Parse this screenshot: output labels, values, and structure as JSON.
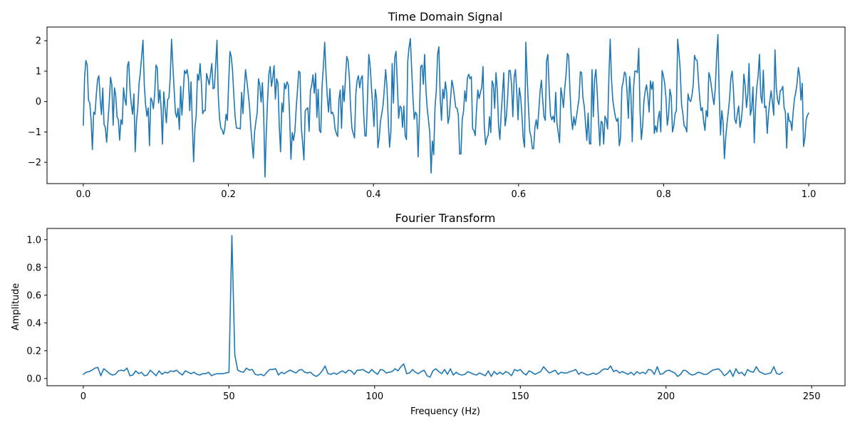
{
  "chart_data": [
    {
      "type": "line",
      "title": "Time Domain Signal",
      "xlabel": "",
      "ylabel": "",
      "xlim": [
        -0.05,
        1.05
      ],
      "ylim": [
        -2.7,
        2.45
      ],
      "xticks": [
        0.0,
        0.2,
        0.4,
        0.6,
        0.8,
        1.0
      ],
      "xtick_labels": [
        "0.0",
        "0.2",
        "0.4",
        "0.6",
        "0.8",
        "1.0"
      ],
      "yticks": [
        -2,
        -1,
        0,
        1,
        2
      ],
      "ytick_labels": [
        "−2",
        "−1",
        "0",
        "1",
        "2"
      ],
      "grid": false,
      "series": [
        {
          "color": "#1f77b4",
          "x_start": 0.0,
          "x_end": 1.0,
          "values": [
            -0.78,
            0.8,
            1.35,
            1.2,
            0.05,
            -0.05,
            -0.6,
            -1.58,
            -0.35,
            -0.42,
            0.2,
            0.72,
            0.85,
            0.1,
            -0.43,
            0.44,
            -0.76,
            -0.85,
            -1.34,
            -0.66,
            -0.02,
            0.8,
            0.55,
            -0.78,
            0.45,
            0.2,
            -0.5,
            -0.6,
            -1.27,
            -0.6,
            -0.75,
            0.45,
            0.08,
            -0.12,
            1.17,
            1.31,
            0.38,
            -0.1,
            -0.42,
            0.25,
            -1.65,
            -0.65,
            -0.2,
            0.6,
            0.98,
            1.5,
            2.02,
            0.55,
            -0.1,
            -0.48,
            -0.21,
            -1.45,
            0.12,
            0.02,
            -0.24,
            0.25,
            1.2,
            1.1,
            -0.05,
            0.38,
            -0.24,
            -1.4,
            0.32,
            -0.22,
            -0.7,
            0.06,
            0.13,
            0.8,
            2.05,
            1.2,
            0.4,
            -0.38,
            -0.52,
            -0.22,
            -0.92,
            0.5,
            -0.45,
            0.3,
            1.02,
            0.92,
            1.05,
            0.75,
            -0.3,
            0.65,
            -0.72,
            -1.98,
            -0.9,
            -0.45,
            0.9,
            0.7,
            1.25,
            0.6,
            -0.4,
            -0.3,
            -0.3,
            0.92,
            0.75,
            0.55,
            0.9,
            1.25,
            0.42,
            0.45,
            1.2,
            2.02,
            0.2,
            -0.55,
            -0.88,
            -0.93,
            -1.08,
            -0.9,
            -0.42,
            -0.62,
            0.6,
            1.65,
            1.48,
            1.02,
            0.2,
            -0.5,
            -0.87,
            -0.88,
            -0.88,
            -0.9,
            0.3,
            -0.4,
            0.35,
            1.05,
            0.7,
            0.3,
            -0.12,
            -0.8,
            -1.32,
            -1.86,
            -1.0,
            -0.65,
            -0.38,
            0.75,
            0.55,
            -0.02,
            0.62,
            -0.4,
            -2.48,
            -1.05,
            0.05,
            0.9,
            1.15,
            0.5,
            0.78,
            1.18,
            0.08,
            0.75,
            0.6,
            -0.8,
            -1.65,
            -0.05,
            -0.35,
            0.6,
            0.42,
            0.65,
            0.54,
            -0.5,
            -1.9,
            -1.02,
            -1.28,
            -1.0,
            -0.26,
            0.35,
            1.0,
            0.95,
            -0.85,
            -1.35,
            -1.92,
            -0.3,
            -0.25,
            -0.2,
            -0.98,
            0.35,
            0.55,
            0.88,
            0.27,
            0.93,
            -0.52,
            0.4,
            -0.95,
            -1.02,
            0.52,
            1.15,
            1.95,
            0.95,
            0.15,
            -0.35,
            0.42,
            -0.4,
            -0.35,
            -0.48,
            -0.9,
            -1.05,
            -1.15,
            0.08,
            0.38,
            -0.88,
            0.52,
            0.0,
            0.75,
            1.48,
            1.35,
            0.82,
            -0.22,
            -0.88,
            -1.05,
            -1.2,
            0.25,
            0.7,
            0.85,
            0.45,
            0.75,
            0.85,
            -0.35,
            -1.13,
            -1.13,
            0.1,
            1.55,
            1.2,
            0.5,
            -0.15,
            -0.82,
            0.4,
            0.1,
            -1.52,
            -1.2,
            -0.65,
            -0.4,
            -0.12,
            0.45,
            1.05,
            0.48,
            -0.65,
            -1.5,
            -1.0,
            1.25,
            -0.05,
            1.45,
            1.65,
            0.55,
            -0.55,
            -0.15,
            -0.2,
            -0.85,
            -0.15,
            -1.12,
            -1.25,
            1.32,
            1.78,
            2.07,
            1.1,
            0.15,
            -0.58,
            -0.35,
            -0.43,
            -1.82,
            -0.48,
            1.15,
            1.2,
            0.57,
            1.55,
            0.4,
            -0.22,
            -0.62,
            -1.05,
            -2.35,
            -1.3,
            -1.75,
            -0.2,
            0.35,
            1.55,
            1.8,
            0.15,
            -0.62,
            0.4,
            0.1,
            0.65,
            0.3,
            -0.72,
            -0.5,
            0.08,
            0.7,
            0.48,
            0.15,
            -0.2,
            -0.22,
            -0.45,
            -1.73,
            -1.72,
            -0.58,
            -0.32,
            0.35,
            0.0,
            0.78,
            0.9,
            0.75,
            0.82,
            -0.9,
            -0.95,
            -1.12,
            -0.25,
            0.38,
            0.1,
            0.3,
            0.45,
            1.15,
            -0.82,
            -1.42,
            -1.2,
            -1.1,
            -0.5,
            -1.02,
            0.68,
            0.55,
            -0.22,
            0.95,
            0.38,
            -0.8,
            -1.25,
            -0.4,
            0.25,
            0.95,
            -0.8,
            -0.5,
            0.15,
            1.02,
            1.02,
            0.55,
            -0.5,
            0.8,
            1.05,
            0.32,
            -0.6,
            0.45,
            0.15,
            -0.45,
            -1.22,
            -1.5,
            1.95,
            0.8,
            -0.15,
            -0.98,
            -1.15,
            -1.55,
            -1.55,
            -0.85,
            -0.6,
            -0.9,
            -0.3,
            0.35,
            0.7,
            0.05,
            -0.5,
            -0.62,
            1.35,
            1.55,
            0.4,
            -0.45,
            -0.6,
            -0.48,
            -0.68,
            0.3,
            -0.72,
            -1.02,
            -1.35,
            0.45,
            0.18,
            -0.2,
            0.45,
            0.9,
            1.58,
            1.5,
            0.35,
            -0.5,
            -0.92,
            -0.5,
            -0.78,
            -0.5,
            -0.2,
            0.1,
            0.98,
            0.95,
            0.12,
            -0.15,
            -0.72,
            -1.28,
            -0.38,
            -1.38,
            -1.4,
            1.05,
            -0.5,
            0.75,
            1.05,
            0.3,
            -0.62,
            -1.45,
            -0.65,
            -0.7,
            -1.4,
            -0.48,
            -0.6,
            -0.9,
            0.8,
            2.05,
            0.75,
            0.05,
            -0.25,
            -0.5,
            -0.65,
            -0.55,
            -1.45,
            -1.2,
            0.45,
            0.65,
            0.97,
            0.9,
            0.3,
            -0.55,
            0.82,
            0.2,
            -1.32,
            0.45,
            1.0,
            1.0,
            0.95,
            1.75,
            -0.3,
            -1.25,
            -0.8,
            0.02,
            0.35,
            0.55,
            0.18,
            -0.35,
            0.68,
            0.4,
            0.65,
            -1.05,
            -0.8,
            -1.0,
            -0.55,
            -0.32,
            -1.0,
            1.02,
            0.85,
            0.6,
            0.1,
            -0.78,
            -0.45,
            0.4,
            0.18,
            -1.0,
            -0.8,
            -0.4,
            -0.3,
            2.05,
            1.6,
            1.0,
            -0.1,
            -0.4,
            -0.8,
            -0.85,
            -1.0,
            0.25,
            0.05,
            0.0,
            0.2,
            0.55,
            1.52,
            1.38,
            1.35,
            0.7,
            0.1,
            -0.3,
            -0.2,
            -0.65,
            -0.95,
            -0.3,
            -0.5,
            0.95,
            0.8,
            0.48,
            0.15,
            -0.1,
            0.45,
            1.48,
            2.2,
            0.25,
            -1.1,
            -0.3,
            -0.68,
            -1.88,
            -1.2,
            -0.72,
            -0.35,
            0.1,
            0.78,
            1.0,
            0.35,
            -0.58,
            -0.72,
            -0.38,
            -0.15,
            -0.85,
            -0.62,
            -0.15,
            0.9,
            0.52,
            -0.2,
            0.2,
            1.25,
            -0.45,
            -0.25,
            0.48,
            -1.36,
            -0.2,
            0.48,
            0.85,
            1.55,
            0.2,
            -0.05,
            1.03,
            -0.2,
            -0.15,
            -1.05,
            -0.4,
            0.02,
            0.35,
            -0.02,
            -0.45,
            1.7,
            0.45,
            0.05,
            -0.1,
            0.35,
            0.38,
            0.5,
            -0.2,
            -0.35,
            -1.53,
            -0.38,
            -0.65,
            -0.65,
            -0.95,
            -0.35,
            0.1,
            0.3,
            0.6,
            1.12,
            0.85,
            0.05,
            0.6,
            -1.48,
            -1.2,
            -0.6,
            -0.45,
            -0.38
          ]
        }
      ]
    },
    {
      "type": "line",
      "title": "Fourier Transform",
      "xlabel": "Frequency (Hz)",
      "ylabel": "Amplitude",
      "xlim": [
        -12.45,
        261.45
      ],
      "ylim": [
        -0.052,
        1.081
      ],
      "xticks": [
        0,
        50,
        100,
        150,
        200,
        250
      ],
      "xtick_labels": [
        "0",
        "50",
        "100",
        "150",
        "200",
        "250"
      ],
      "yticks": [
        0.0,
        0.2,
        0.4,
        0.6,
        0.8,
        1.0
      ],
      "ytick_labels": [
        "0.0",
        "0.2",
        "0.4",
        "0.6",
        "0.8",
        "1.0"
      ],
      "grid": false,
      "series": [
        {
          "color": "#1f77b4",
          "x_start": 0,
          "x_step": 1,
          "values": [
            0.03,
            0.045,
            0.05,
            0.06,
            0.075,
            0.08,
            0.02,
            0.07,
            0.055,
            0.035,
            0.025,
            0.03,
            0.055,
            0.06,
            0.055,
            0.075,
            0.02,
            0.025,
            0.055,
            0.035,
            0.045,
            0.02,
            0.025,
            0.06,
            0.04,
            0.02,
            0.055,
            0.03,
            0.045,
            0.04,
            0.055,
            0.05,
            0.06,
            0.04,
            0.025,
            0.055,
            0.045,
            0.035,
            0.045,
            0.03,
            0.025,
            0.035,
            0.035,
            0.045,
            0.02,
            0.03,
            0.035,
            0.035,
            0.035,
            0.04,
            0.045,
            1.03,
            0.17,
            0.06,
            0.05,
            0.045,
            0.075,
            0.06,
            0.065,
            0.03,
            0.025,
            0.03,
            0.02,
            0.045,
            0.065,
            0.065,
            0.07,
            0.025,
            0.045,
            0.035,
            0.05,
            0.06,
            0.05,
            0.04,
            0.06,
            0.065,
            0.045,
            0.04,
            0.045,
            0.025,
            0.015,
            0.03,
            0.055,
            0.09,
            0.035,
            0.03,
            0.04,
            0.03,
            0.045,
            0.055,
            0.04,
            0.06,
            0.055,
            0.03,
            0.06,
            0.06,
            0.065,
            0.05,
            0.04,
            0.065,
            0.045,
            0.03,
            0.065,
            0.06,
            0.04,
            0.045,
            0.05,
            0.07,
            0.055,
            0.085,
            0.105,
            0.035,
            0.04,
            0.065,
            0.045,
            0.035,
            0.05,
            0.06,
            0.02,
            0.01,
            0.055,
            0.07,
            0.05,
            0.035,
            0.065,
            0.03,
            0.07,
            0.025,
            0.045,
            0.03,
            0.025,
            0.03,
            0.05,
            0.04,
            0.03,
            0.025,
            0.04,
            0.03,
            0.02,
            0.055,
            0.015,
            0.05,
            0.03,
            0.045,
            0.03,
            0.05,
            0.04,
            0.02,
            0.065,
            0.055,
            0.065,
            0.04,
            0.025,
            0.055,
            0.045,
            0.03,
            0.04,
            0.05,
            0.085,
            0.06,
            0.04,
            0.05,
            0.06,
            0.03,
            0.045,
            0.04,
            0.04,
            0.05,
            0.055,
            0.065,
            0.03,
            0.045,
            0.035,
            0.025,
            0.03,
            0.04,
            0.03,
            0.04,
            0.06,
            0.07,
            0.065,
            0.09,
            0.05,
            0.06,
            0.04,
            0.05,
            0.04,
            0.03,
            0.045,
            0.025,
            0.05,
            0.035,
            0.045,
            0.035,
            0.065,
            0.06,
            0.03,
            0.085,
            0.03,
            0.035,
            0.055,
            0.06,
            0.05,
            0.04,
            0.015,
            0.03,
            0.06,
            0.055,
            0.035,
            0.025,
            0.03,
            0.045,
            0.04,
            0.03,
            0.03,
            0.045,
            0.06,
            0.065,
            0.07,
            0.05,
            0.02,
            0.035,
            0.06,
            0.015,
            0.07,
            0.035,
            0.045,
            0.02,
            0.065,
            0.05,
            0.045,
            0.085,
            0.05,
            0.04,
            0.03,
            0.035,
            0.04,
            0.085,
            0.035,
            0.03,
            0.045
          ]
        }
      ]
    }
  ]
}
